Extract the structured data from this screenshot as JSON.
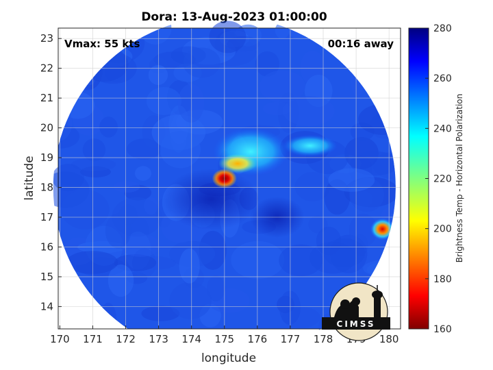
{
  "chart_data": {
    "type": "heatmap",
    "title": "Dora: 13-Aug-2023 01:00:00",
    "xlabel": "longitude",
    "ylabel": "latitude",
    "xlim": [
      169.95,
      180.35
    ],
    "ylim": [
      13.25,
      23.35
    ],
    "x_ticks": [
      170,
      171,
      172,
      173,
      174,
      175,
      176,
      177,
      178,
      179,
      180
    ],
    "y_ticks": [
      14,
      15,
      16,
      17,
      18,
      19,
      20,
      21,
      22,
      23
    ],
    "grid": true,
    "colorbar": {
      "label": "Brightness Temp - Horizontal Polarization",
      "min": 160,
      "max": 280,
      "ticks": [
        160,
        180,
        200,
        220,
        240,
        260,
        280
      ],
      "colormap": "jet"
    },
    "annotations": {
      "vmax": "Vmax: 55 kts",
      "time_offset": "00:16 away"
    },
    "features": {
      "swath_center": {
        "lon": 175.0,
        "lat": 18.0
      },
      "core_min": {
        "lon": 175.0,
        "lat": 18.3,
        "value": 165
      },
      "secondary_min": {
        "lon": 179.8,
        "lat": 16.6,
        "value": 185
      },
      "background_value": 262
    }
  },
  "logo": {
    "text": "CIMSS"
  },
  "colors": {
    "background": "#ffffff",
    "axis": "#262626",
    "grid": "#d9d9d9"
  }
}
